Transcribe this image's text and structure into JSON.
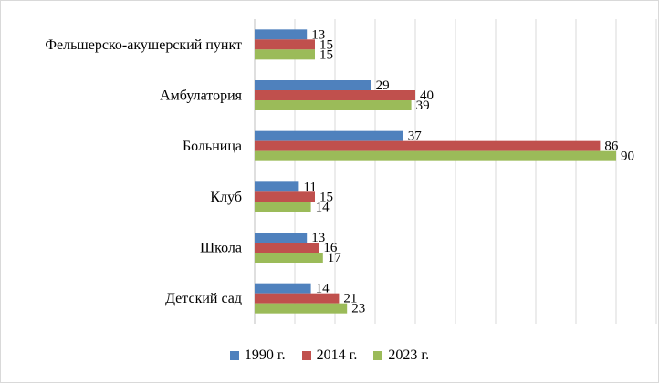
{
  "chart_data": {
    "type": "bar",
    "orientation": "horizontal",
    "categories": [
      "Фельшерско-акушерский пункт",
      "Амбулатория",
      "Больница",
      "Клуб",
      "Школа",
      "Детский сад"
    ],
    "series": [
      {
        "name": "1990 г.",
        "color": "#4F81BD",
        "values": [
          13,
          29,
          37,
          11,
          13,
          14
        ]
      },
      {
        "name": "2014 г.",
        "color": "#C0504D",
        "values": [
          15,
          40,
          86,
          15,
          16,
          21
        ]
      },
      {
        "name": "2023 г.",
        "color": "#9BBB59",
        "values": [
          15,
          39,
          90,
          14,
          17,
          23
        ]
      }
    ],
    "xlim": [
      0,
      100
    ],
    "grid": true,
    "legend_position": "bottom",
    "data_labels": true
  }
}
